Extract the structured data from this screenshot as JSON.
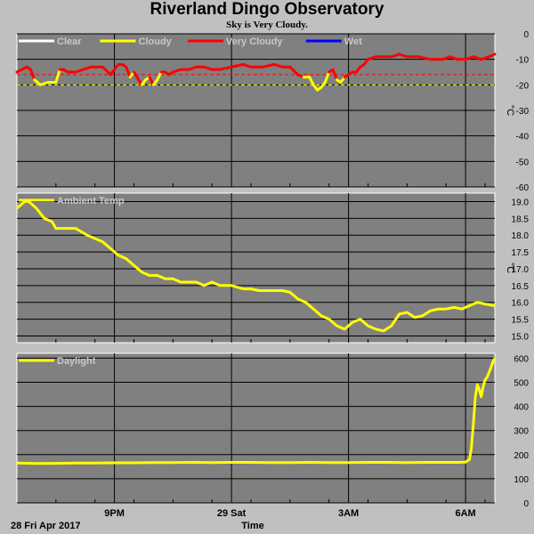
{
  "title": "Riverland Dingo Observatory",
  "subtitle": "Sky is Very Cloudy.",
  "xaxis": {
    "label": "Time",
    "date_label": "28 Fri Apr 2017",
    "ticks": [
      {
        "t": 2.5,
        "label": "9PM"
      },
      {
        "t": 5.5,
        "label": "29 Sat"
      },
      {
        "t": 8.5,
        "label": "3AM"
      },
      {
        "t": 11.5,
        "label": "6AM"
      }
    ],
    "range_hours": [
      0,
      12.25
    ]
  },
  "colors": {
    "background": "#c0c0c0",
    "plot_bg": "#808080",
    "grid": "#000000",
    "clear": "#ffffff",
    "cloudy": "#ffff00",
    "very_cloudy": "#ff0000",
    "wet": "#0000ff",
    "threshold": "#ff0000"
  },
  "chart_data": [
    {
      "type": "line",
      "name": "sky",
      "ylabel": "°C",
      "ylim": [
        -60,
        0
      ],
      "yticks": [
        0,
        -10,
        -20,
        -30,
        -40,
        -50,
        -60
      ],
      "grid": true,
      "legend_position": "top-left",
      "legend": [
        {
          "label": "Clear",
          "color": "#ffffff"
        },
        {
          "label": "Cloudy",
          "color": "#ffff00"
        },
        {
          "label": "Very Cloudy",
          "color": "#ff0000"
        },
        {
          "label": "Wet",
          "color": "#0000ff"
        }
      ],
      "thresholds": [
        {
          "y": -16,
          "color": "#ff0000",
          "style": "dashed"
        },
        {
          "y": -20,
          "color": "#ffff00",
          "style": "dashed"
        }
      ],
      "series": [
        {
          "x": [
            0,
            0.25,
            0.35,
            0.45,
            0.6,
            0.8,
            1.0,
            1.1,
            1.2,
            1.3,
            1.5,
            1.7,
            1.9,
            2.0,
            2.2,
            2.4,
            2.6,
            2.7,
            2.8,
            2.9,
            3.0,
            3.2,
            3.3,
            3.4,
            3.5,
            3.6,
            3.7,
            3.8,
            3.9,
            4.0,
            4.2,
            4.4,
            4.6,
            4.8,
            5.0,
            5.2,
            5.5,
            5.8,
            6.0,
            6.3,
            6.6,
            6.8,
            7.0,
            7.2,
            7.35,
            7.5,
            7.6,
            7.7,
            7.8,
            7.9,
            8.0,
            8.1,
            8.2,
            8.3,
            8.4,
            8.5,
            8.6,
            8.7,
            8.8,
            8.9,
            9.0,
            9.2,
            9.4,
            9.6,
            9.8,
            10.0,
            10.3,
            10.6,
            10.9,
            11.1,
            11.3,
            11.5,
            11.7,
            11.9,
            12.1,
            12.25
          ],
          "y": [
            -15,
            -13,
            -14,
            -18,
            -20,
            -19,
            -19,
            -14,
            -14,
            -15,
            -15,
            -14,
            -13,
            -13,
            -13,
            -16,
            -12,
            -12,
            -13,
            -17,
            -15,
            -20,
            -18,
            -17,
            -20,
            -18,
            -15,
            -15,
            -16,
            -15,
            -14,
            -14,
            -13,
            -13,
            -14,
            -14,
            -13,
            -12,
            -13,
            -13,
            -12,
            -13,
            -13,
            -16,
            -17,
            -17,
            -20,
            -22,
            -21,
            -19,
            -15,
            -14,
            -18,
            -19,
            -17,
            -16,
            -15,
            -15,
            -13,
            -12,
            -10,
            -9,
            -9,
            -9,
            -8,
            -9,
            -9,
            -10,
            -10,
            -9,
            -10,
            -10,
            -9,
            -10,
            -9,
            -8
          ],
          "colors": [
            "#ff0000",
            "#ff0000",
            "#ff0000",
            "#ffff00",
            "#ffff00",
            "#ffff00",
            "#ffff00",
            "#ff0000",
            "#ff0000",
            "#ff0000",
            "#ff0000",
            "#ff0000",
            "#ff0000",
            "#ff0000",
            "#ff0000",
            "#ff0000",
            "#ff0000",
            "#ff0000",
            "#ff0000",
            "#ffff00",
            "#ff0000",
            "#ffff00",
            "#ffff00",
            "#ff0000",
            "#ffff00",
            "#ffff00",
            "#ff0000",
            "#ff0000",
            "#ff0000",
            "#ff0000",
            "#ff0000",
            "#ff0000",
            "#ff0000",
            "#ff0000",
            "#ff0000",
            "#ff0000",
            "#ff0000",
            "#ff0000",
            "#ff0000",
            "#ff0000",
            "#ff0000",
            "#ff0000",
            "#ff0000",
            "#ff0000",
            "#ffff00",
            "#ffff00",
            "#ffff00",
            "#ffff00",
            "#ffff00",
            "#ffff00",
            "#ff0000",
            "#ff0000",
            "#ffff00",
            "#ffff00",
            "#ff0000",
            "#ff0000",
            "#ff0000",
            "#ff0000",
            "#ff0000",
            "#ff0000",
            "#ff0000",
            "#ff0000",
            "#ff0000",
            "#ff0000",
            "#ff0000",
            "#ff0000",
            "#ff0000",
            "#ff0000",
            "#ff0000",
            "#ff0000",
            "#ff0000",
            "#ff0000",
            "#ff0000",
            "#ff0000",
            "#ff0000",
            "#ff0000"
          ]
        }
      ]
    },
    {
      "type": "line",
      "name": "ambient",
      "ylabel": "°C",
      "ylim": [
        14.8,
        19.25
      ],
      "yticks": [
        19.0,
        18.5,
        18.0,
        17.5,
        17.0,
        16.5,
        16.0,
        15.5,
        15.0
      ],
      "ytick_labels": [
        "19.0",
        "18.5",
        "18.0",
        "17.5",
        "17.0",
        "16.5",
        "16.0",
        "15.5",
        "15.0"
      ],
      "grid": true,
      "legend_position": "top-left",
      "legend": [
        {
          "label": "Ambient Temp",
          "color": "#ffff00"
        }
      ],
      "series": [
        {
          "name": "Ambient Temp",
          "color": "#ffff00",
          "x": [
            0,
            0.2,
            0.3,
            0.5,
            0.7,
            0.9,
            1.0,
            1.2,
            1.5,
            1.8,
            2.0,
            2.2,
            2.4,
            2.6,
            2.8,
            3.0,
            3.2,
            3.4,
            3.6,
            3.8,
            4.0,
            4.2,
            4.4,
            4.6,
            4.8,
            5.0,
            5.2,
            5.5,
            5.8,
            6.0,
            6.2,
            6.5,
            6.8,
            7.0,
            7.2,
            7.4,
            7.6,
            7.8,
            8.0,
            8.2,
            8.4,
            8.6,
            8.8,
            9.0,
            9.2,
            9.4,
            9.6,
            9.8,
            10.0,
            10.2,
            10.4,
            10.6,
            10.8,
            11.0,
            11.2,
            11.4,
            11.6,
            11.8,
            12.0,
            12.25
          ],
          "y": [
            18.8,
            19.0,
            19.0,
            18.8,
            18.5,
            18.4,
            18.2,
            18.2,
            18.2,
            18.0,
            17.9,
            17.8,
            17.6,
            17.4,
            17.3,
            17.1,
            16.9,
            16.8,
            16.8,
            16.7,
            16.7,
            16.6,
            16.6,
            16.6,
            16.5,
            16.6,
            16.5,
            16.5,
            16.4,
            16.4,
            16.35,
            16.35,
            16.35,
            16.3,
            16.1,
            16.0,
            15.8,
            15.6,
            15.5,
            15.3,
            15.2,
            15.4,
            15.5,
            15.3,
            15.2,
            15.15,
            15.3,
            15.65,
            15.7,
            15.55,
            15.6,
            15.75,
            15.8,
            15.8,
            15.85,
            15.8,
            15.9,
            16.0,
            15.95,
            15.9
          ]
        }
      ]
    },
    {
      "type": "line",
      "name": "daylight",
      "ylabel": "",
      "ylim": [
        0,
        620
      ],
      "yticks": [
        0,
        100,
        200,
        300,
        400,
        500,
        600
      ],
      "grid": true,
      "legend_position": "top-left",
      "legend": [
        {
          "label": "Daylight",
          "color": "#ffff00"
        }
      ],
      "series": [
        {
          "name": "Daylight",
          "color": "#ffff00",
          "x": [
            0,
            0.5,
            1.0,
            1.5,
            2.0,
            2.5,
            3.0,
            3.5,
            4.0,
            4.5,
            5.0,
            5.5,
            6.0,
            6.5,
            7.0,
            7.5,
            8.0,
            8.5,
            9.0,
            9.5,
            10.0,
            10.5,
            11.0,
            11.3,
            11.5,
            11.6,
            11.65,
            11.7,
            11.75,
            11.8,
            11.85,
            11.9,
            11.95,
            12.0,
            12.05,
            12.1,
            12.15,
            12.2,
            12.25
          ],
          "y": [
            165,
            163,
            164,
            165,
            165,
            166,
            166,
            167,
            167,
            168,
            167,
            168,
            168,
            167,
            167,
            168,
            167,
            167,
            168,
            168,
            167,
            168,
            168,
            168,
            169,
            180,
            230,
            330,
            440,
            490,
            470,
            440,
            480,
            510,
            520,
            540,
            560,
            585,
            600
          ]
        }
      ]
    }
  ]
}
